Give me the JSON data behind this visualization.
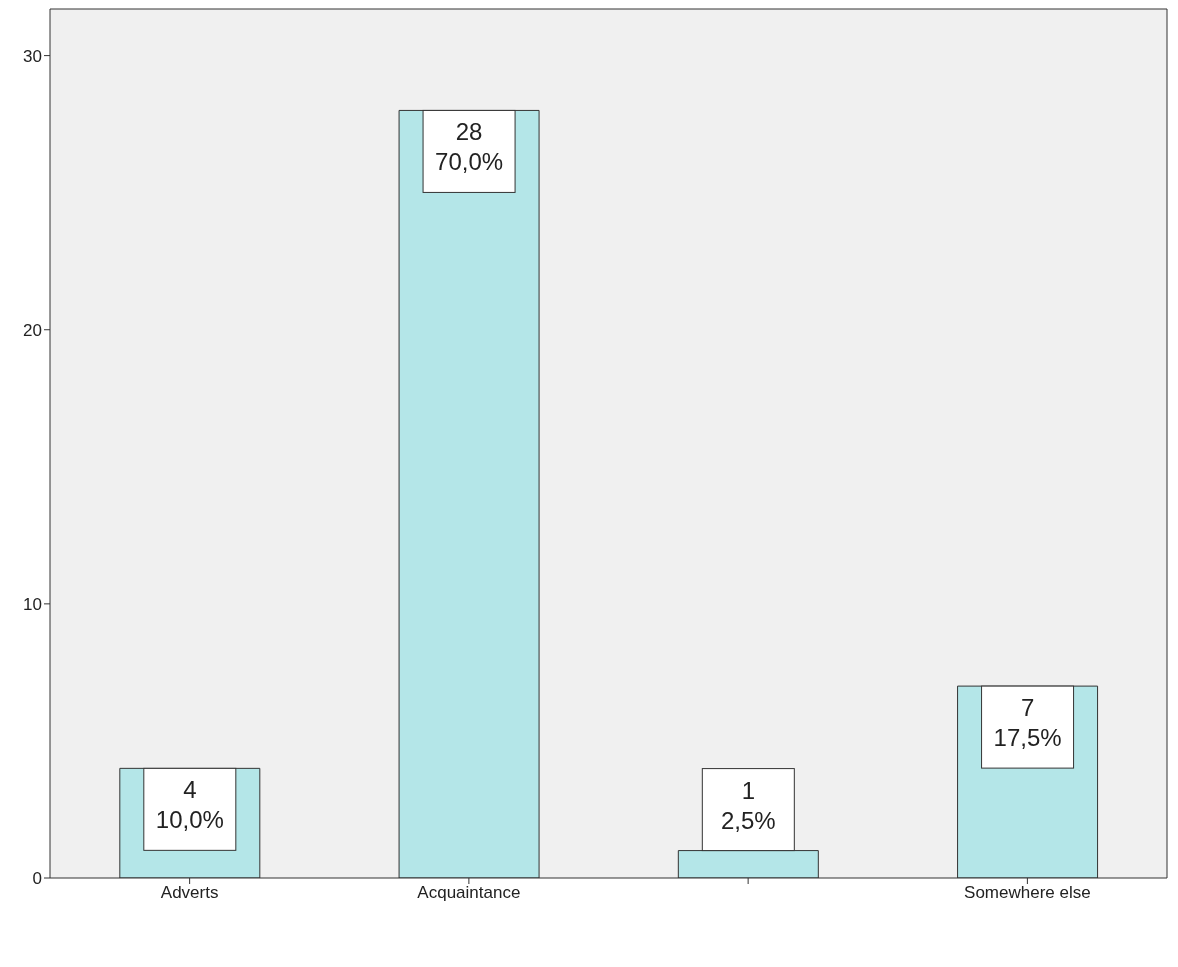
{
  "chart_data": {
    "type": "bar",
    "categories": [
      "Adverts",
      "Acquaintance",
      null,
      "Somewhere else"
    ],
    "values": [
      4,
      28,
      1,
      7
    ],
    "color": "#b4e6e8",
    "value_labels": [
      "4\n10,0%",
      "28\n70,0%",
      "1\n2,5%",
      "7\n17,5%"
    ],
    "ylim": [
      0,
      31.7
    ],
    "yticks": [
      0,
      10,
      20,
      30
    ],
    "grid": false
  }
}
